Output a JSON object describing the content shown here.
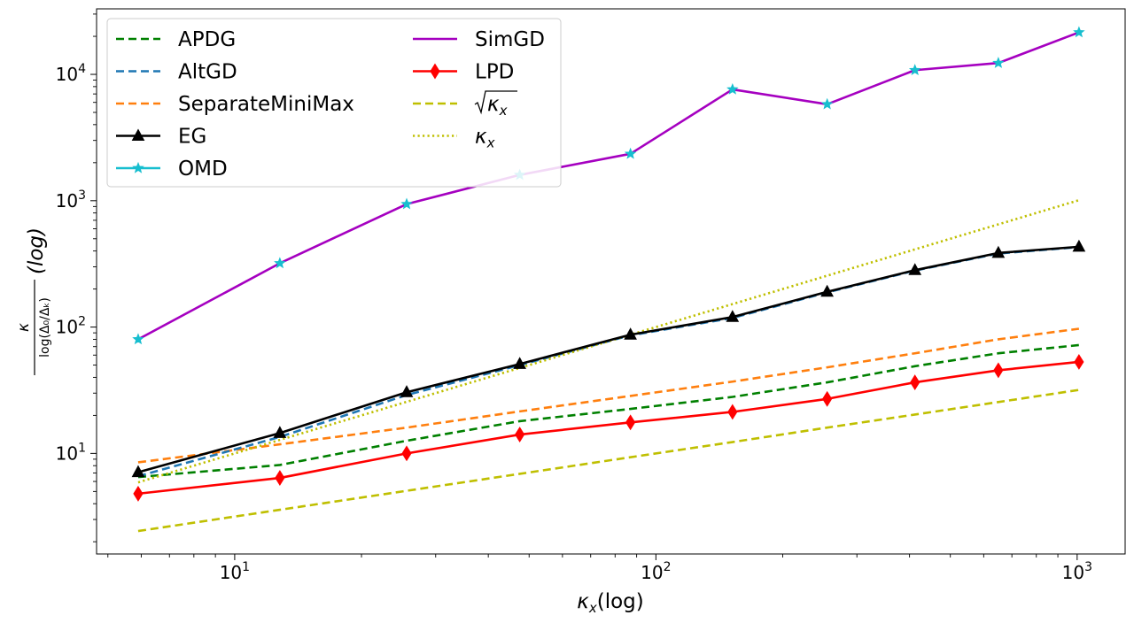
{
  "chart_data": {
    "type": "line",
    "x_scale": "log",
    "y_scale": "log",
    "xlim": [
      4.7,
      1300
    ],
    "ylim": [
      1.6,
      33000
    ],
    "x_ticks": [
      {
        "value": 10,
        "base": "10",
        "exp": "1"
      },
      {
        "value": 100,
        "base": "10",
        "exp": "2"
      },
      {
        "value": 1000,
        "base": "10",
        "exp": "3"
      }
    ],
    "y_ticks": [
      {
        "value": 10,
        "base": "10",
        "exp": "1"
      },
      {
        "value": 100,
        "base": "10",
        "exp": "2"
      },
      {
        "value": 1000,
        "base": "10",
        "exp": "3"
      },
      {
        "value": 10000,
        "base": "10",
        "exp": "4"
      }
    ],
    "xlabel": {
      "main": "κ",
      "sub": "x",
      "rest": "(log)"
    },
    "ylabel": {
      "num": "κ",
      "den": "log(Δ₀/Δₖ)",
      "rest": "(log)"
    },
    "grid": false,
    "legend_position": "top-left",
    "x": [
      5.9,
      12.8,
      25.6,
      47.5,
      87.0,
      152,
      255,
      412,
      650,
      1010
    ],
    "series": [
      {
        "name": "APDG",
        "color": "#008000",
        "dash": "dashed",
        "marker": "none",
        "values": [
          6.5,
          8.1,
          12.6,
          18.0,
          22.5,
          28.0,
          36.5,
          49.0,
          62.0,
          72.0
        ]
      },
      {
        "name": "AltGD",
        "color": "#1f77b4",
        "dash": "dashed",
        "marker": "none",
        "values": [
          6.6,
          13.5,
          29.0,
          50.0,
          86.0,
          118,
          188,
          280,
          382,
          430
        ]
      },
      {
        "name": "SeparateMiniMax",
        "color": "#ff7f0e",
        "dash": "dashed",
        "marker": "none",
        "values": [
          8.5,
          11.8,
          16.0,
          21.5,
          28.5,
          37.0,
          48.0,
          62.0,
          80.0,
          97.0
        ]
      },
      {
        "name": "EG",
        "color": "#000000",
        "dash": "solid",
        "marker": "triangle",
        "values": [
          7.1,
          14.5,
          30.5,
          51.0,
          87.0,
          120,
          190,
          282,
          386,
          432
        ]
      },
      {
        "name": "OMD",
        "color": "#17becf",
        "dash": "solid",
        "marker": "star",
        "values": [
          80,
          320,
          940,
          1600,
          2350,
          7600,
          5800,
          10800,
          12300,
          21500
        ]
      },
      {
        "name": "SimGD",
        "color": "#a500c0",
        "dash": "solid",
        "marker": "none",
        "values": [
          80,
          320,
          940,
          1600,
          2350,
          7600,
          5800,
          10800,
          12300,
          21500
        ]
      },
      {
        "name": "LPD",
        "color": "#ff0000",
        "dash": "solid",
        "marker": "diamond",
        "values": [
          4.8,
          6.4,
          10.0,
          14.1,
          17.6,
          21.3,
          27.0,
          36.5,
          45.5,
          53.0
        ]
      },
      {
        "name": "√κx",
        "label_main": "κ",
        "label_sub": "x",
        "label_sqrt": true,
        "color": "#bfbf00",
        "dash": "dashed",
        "marker": "none",
        "values": [
          2.43,
          3.58,
          5.06,
          6.89,
          9.33,
          12.3,
          16.0,
          20.3,
          25.5,
          31.8
        ]
      },
      {
        "name": "κx",
        "label_main": "κ",
        "label_sub": "x",
        "label_sqrt": false,
        "color": "#bfbf00",
        "dash": "dotted",
        "marker": "none",
        "values": [
          5.9,
          12.8,
          25.6,
          47.5,
          87.0,
          152,
          255,
          412,
          650,
          1010
        ]
      }
    ]
  }
}
